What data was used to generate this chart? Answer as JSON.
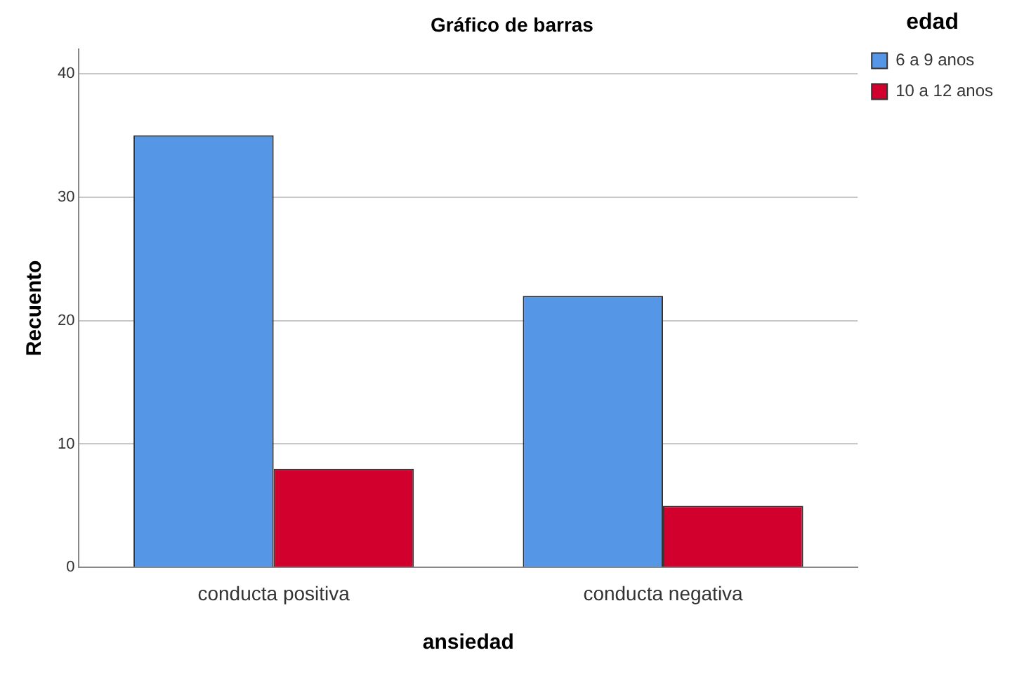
{
  "chart_data": {
    "type": "bar",
    "title": "Gráfico de barras",
    "xlabel": "ansiedad",
    "ylabel": "Recuento",
    "legend_title": "edad",
    "categories": [
      "conducta positiva",
      "conducta negativa"
    ],
    "series": [
      {
        "name": "6 a 9 anos",
        "color": "#5596e6",
        "values": [
          35,
          22
        ]
      },
      {
        "name": "10 a 12 anos",
        "color": "#d2002d",
        "values": [
          8,
          5
        ]
      }
    ],
    "ylim": [
      0,
      42
    ],
    "yticks": [
      0,
      10,
      20,
      30,
      40
    ],
    "grid": "y",
    "legend": "top right"
  }
}
